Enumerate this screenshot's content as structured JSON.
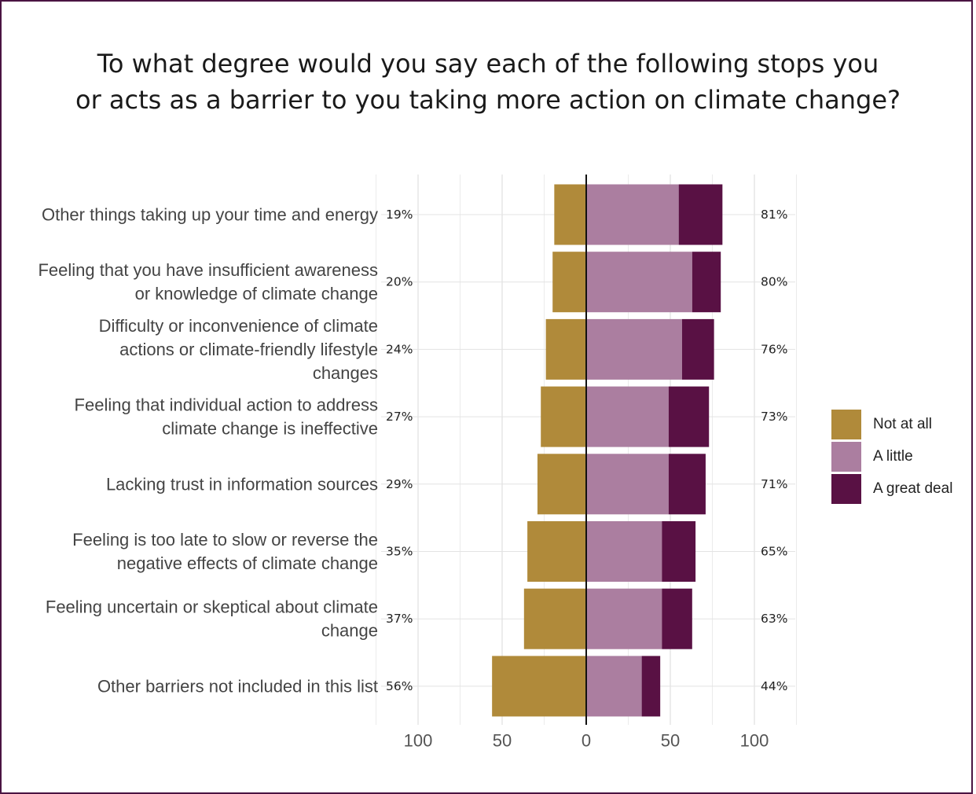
{
  "chart_data": {
    "type": "bar",
    "orientation": "horizontal-diverging",
    "title_lines": [
      "To what degree would you say each of the following stops you",
      "or acts as a barrier to you taking more action on climate change?"
    ],
    "categories": [
      [
        "Other things taking up your time and energy"
      ],
      [
        "Feeling that you have insufficient awareness",
        "or knowledge of climate change"
      ],
      [
        "Difficulty or inconvenience of climate",
        "actions or climate-friendly lifestyle",
        "changes"
      ],
      [
        "Feeling that individual action to address",
        "climate change is ineffective"
      ],
      [
        "Lacking trust in information sources"
      ],
      [
        "Feeling is too late to slow or reverse the",
        "negative effects of climate change"
      ],
      [
        "Feeling uncertain or skeptical about climate",
        "change"
      ],
      [
        "Other barriers not included in this list"
      ]
    ],
    "series": [
      {
        "name": "Not at all",
        "values": [
          19,
          20,
          24,
          27,
          29,
          35,
          37,
          56
        ],
        "color": "#b08a3a",
        "direction": "left"
      },
      {
        "name": "A little",
        "values": [
          55,
          63,
          57,
          49,
          49,
          45,
          45,
          33
        ],
        "color": "#ab7ea0",
        "direction": "right"
      },
      {
        "name": "A great deal",
        "values": [
          26,
          17,
          19,
          24,
          22,
          20,
          18,
          11
        ],
        "color": "#591144",
        "direction": "right"
      }
    ],
    "left_labels": [
      "19%",
      "20%",
      "24%",
      "27%",
      "29%",
      "35%",
      "37%",
      "56%"
    ],
    "right_labels": [
      "81%",
      "80%",
      "76%",
      "73%",
      "71%",
      "65%",
      "63%",
      "44%"
    ],
    "x_ticks": [
      {
        "value": -100,
        "label": "100"
      },
      {
        "value": -50,
        "label": "50"
      },
      {
        "value": 0,
        "label": "0"
      },
      {
        "value": 50,
        "label": "50"
      },
      {
        "value": 100,
        "label": "100"
      }
    ],
    "xlim": [
      -100,
      100
    ],
    "grid": true,
    "legend_position": "right"
  },
  "legend": {
    "items": [
      {
        "label": "Not at all",
        "color": "#b08a3a"
      },
      {
        "label": "A little",
        "color": "#ab7ea0"
      },
      {
        "label": "A great deal",
        "color": "#591144"
      }
    ]
  }
}
